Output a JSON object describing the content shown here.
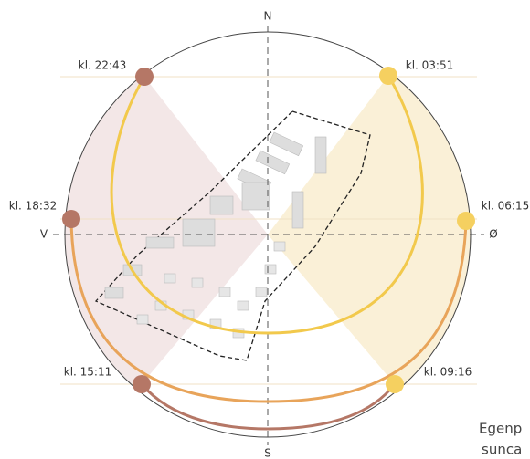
{
  "compass": {
    "north": "N",
    "south": "S",
    "west": "V",
    "east": "Ø"
  },
  "times": [
    {
      "label": "kl. 22:43"
    },
    {
      "label": "kl. 03:51"
    },
    {
      "label": "kl. 18:32"
    },
    {
      "label": "kl. 06:15"
    },
    {
      "label": "kl. 15:11"
    },
    {
      "label": "kl. 09:16"
    }
  ],
  "caption": [
    "Egenp",
    "sunca"
  ]
}
